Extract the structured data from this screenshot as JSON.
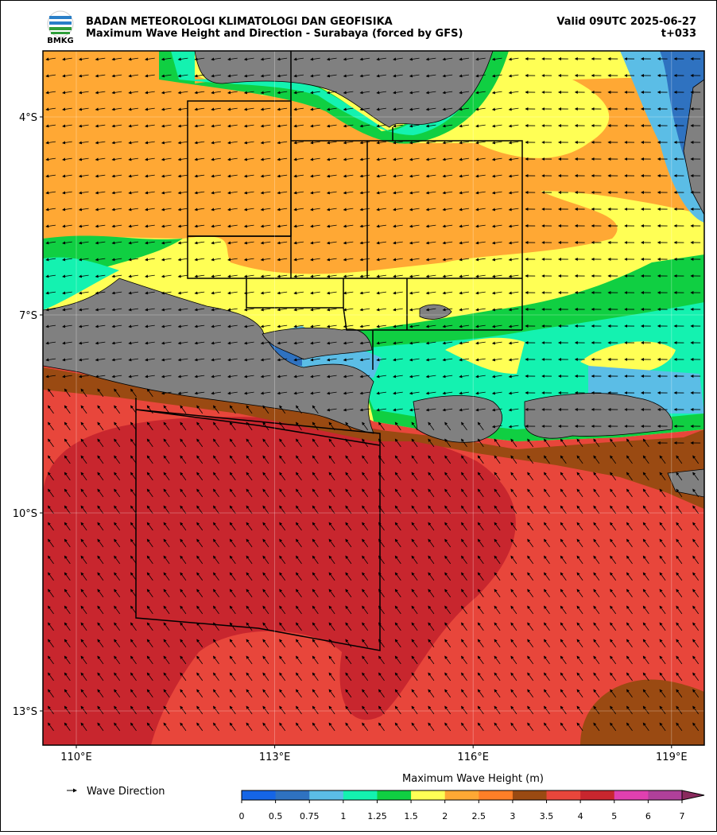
{
  "header": {
    "logo_text": "BMKG",
    "agency": "BADAN METEOROLOGI KLIMATOLOGI DAN GEOFISIKA",
    "title": "Maximum Wave Height and Direction - Surabaya (forced by GFS)",
    "valid": "Valid 09UTC 2025-06-27",
    "lead": "t+033"
  },
  "map": {
    "lat_ticks": [
      {
        "value": -4,
        "label": "4°S"
      },
      {
        "value": -7,
        "label": "7°S"
      },
      {
        "value": -10,
        "label": "10°S"
      },
      {
        "value": -13,
        "label": "13°S"
      }
    ],
    "lon_ticks": [
      {
        "value": 110,
        "label": "110°E"
      },
      {
        "value": 113,
        "label": "113°E"
      },
      {
        "value": 116,
        "label": "116°E"
      },
      {
        "value": 119,
        "label": "119°E"
      }
    ]
  },
  "legend": {
    "wave_direction": "Wave Direction"
  },
  "colorbar": {
    "title": "Maximum Wave Height (m)",
    "bounds": [
      0,
      0.5,
      0.75,
      1,
      1.25,
      1.5,
      2,
      2.5,
      3,
      3.5,
      4,
      5,
      6,
      7
    ],
    "colors": [
      "#1565e6",
      "#2f72c0",
      "#5bbde6",
      "#14f2b0",
      "#10cf42",
      "#ffff55",
      "#ffa834",
      "#ff7f27",
      "#9a4a12",
      "#e8463b",
      "#c8262e",
      "#e040b0",
      "#b0409a"
    ],
    "extend_color": "#8a2a5e"
  }
}
